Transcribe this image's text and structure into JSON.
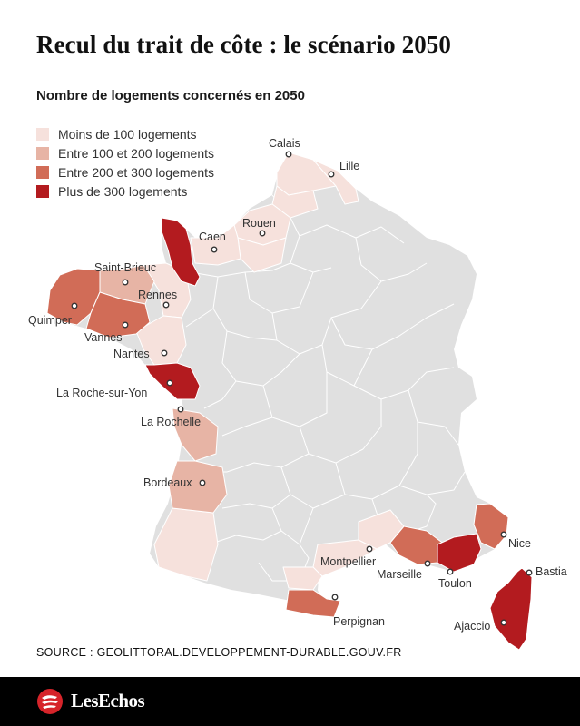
{
  "title": "Recul du trait de côte : le scénario 2050",
  "subtitle": "Nombre de logements concernés en 2050",
  "legend": [
    {
      "label": "Moins de 100 logements",
      "color": "#f6e1dc"
    },
    {
      "label": "Entre 100 et 200 logements",
      "color": "#e7b4a5"
    },
    {
      "label": "Entre 200 et 300 logements",
      "color": "#d16c57"
    },
    {
      "label": "Plus de 300 logements",
      "color": "#b31b1f"
    }
  ],
  "colors": {
    "land": "#e0e0e0",
    "border": "#ffffff"
  },
  "cities": {
    "calais": "Calais",
    "lille": "Lille",
    "rouen": "Rouen",
    "caen": "Caen",
    "saint_brieuc": "Saint-Brieuc",
    "rennes": "Rennes",
    "quimper": "Quimper",
    "vannes": "Vannes",
    "nantes": "Nantes",
    "la_roche_sur_yon": "La Roche-sur-Yon",
    "la_rochelle": "La Rochelle",
    "bordeaux": "Bordeaux",
    "montpellier": "Montpellier",
    "marseille": "Marseille",
    "toulon": "Toulon",
    "nice": "Nice",
    "bastia": "Bastia",
    "ajaccio": "Ajaccio",
    "perpignan": "Perpignan"
  },
  "source": "SOURCE : GEOLITTORAL.DEVELOPPEMENT-DURABLE.GOUV.FR",
  "brand": "LesEchos"
}
